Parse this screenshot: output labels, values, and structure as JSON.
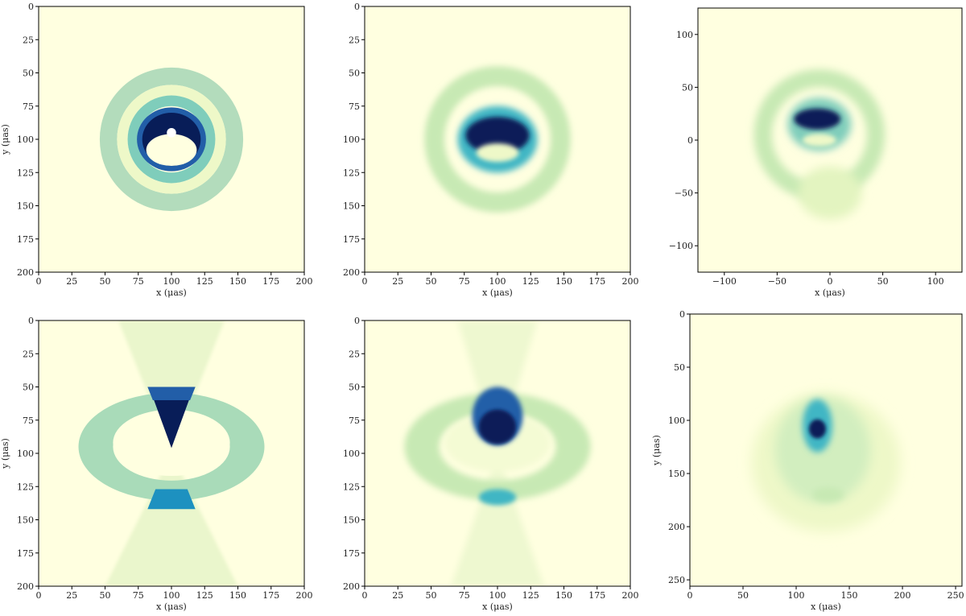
{
  "chart_data": [
    {
      "type": "heatmap",
      "id": "p1",
      "xlabel": "x (μas)",
      "ylabel": "y (μas)",
      "xlim": [
        0,
        200
      ],
      "ylim": [
        200,
        0
      ],
      "xticks": [
        0,
        25,
        50,
        75,
        100,
        125,
        150,
        175,
        200
      ],
      "yticks": [
        0,
        25,
        50,
        75,
        100,
        125,
        150,
        175,
        200
      ],
      "features": [
        {
          "kind": "ring",
          "cx": 100,
          "cy": 100,
          "r_outer": 54,
          "r_inner": 41,
          "color": "#b3dcbc"
        },
        {
          "kind": "ring",
          "cx": 100,
          "cy": 100,
          "r_outer": 41,
          "r_inner": 33,
          "color": "#eef8c8"
        },
        {
          "kind": "ring",
          "cx": 100,
          "cy": 100,
          "r_outer": 33,
          "r_inner": 25,
          "color": "#7fcdbb"
        },
        {
          "kind": "ellipse",
          "cx": 100,
          "cy": 100,
          "rx": 26,
          "ry": 24,
          "color": "#225ea8"
        },
        {
          "kind": "ellipse",
          "cx": 100,
          "cy": 100,
          "rx": 22,
          "ry": 20,
          "color": "#081d58"
        },
        {
          "kind": "ellipse",
          "cx": 100,
          "cy": 108,
          "rx": 19,
          "ry": 12,
          "color": "#ffffe0"
        },
        {
          "kind": "ellipse",
          "cx": 100,
          "cy": 95,
          "rx": 3.5,
          "ry": 3.5,
          "color": "#ffffff"
        }
      ]
    },
    {
      "type": "heatmap",
      "id": "p2",
      "xlabel": "x (μas)",
      "ylabel": "",
      "xlim": [
        0,
        200
      ],
      "ylim": [
        200,
        0
      ],
      "xticks": [
        0,
        25,
        50,
        75,
        100,
        125,
        150,
        175,
        200
      ],
      "yticks": [
        0,
        25,
        50,
        75,
        100,
        125,
        150,
        175,
        200
      ],
      "features": [
        {
          "kind": "ring",
          "cx": 100,
          "cy": 100,
          "r_outer": 55,
          "r_inner": 40,
          "color": "#c7e9b4",
          "blur": 4
        },
        {
          "kind": "ellipse",
          "cx": 100,
          "cy": 100,
          "rx": 30,
          "ry": 25,
          "color": "#41b6c4",
          "blur": 4
        },
        {
          "kind": "ellipse",
          "cx": 100,
          "cy": 97,
          "rx": 24,
          "ry": 14,
          "color": "#081d58",
          "blur": 3
        },
        {
          "kind": "ellipse",
          "cx": 100,
          "cy": 110,
          "rx": 16,
          "ry": 7,
          "color": "#eef8c8",
          "blur": 3
        }
      ]
    },
    {
      "type": "heatmap",
      "id": "p3",
      "xlabel": "x (μas)",
      "ylabel": "",
      "xlim": [
        -125,
        125
      ],
      "ylim": [
        -125,
        125
      ],
      "xticks": [
        -100,
        -50,
        0,
        50,
        100
      ],
      "yticks": [
        -100,
        -50,
        0,
        50,
        100
      ],
      "features": [
        {
          "kind": "ring",
          "cx": -10,
          "cy": 5,
          "r_outer": 62,
          "r_inner": 45,
          "color": "#c7e9b4",
          "blur": 5
        },
        {
          "kind": "ellipse",
          "cx": -10,
          "cy": 15,
          "rx": 30,
          "ry": 25,
          "color": "#7fcdbb",
          "blur": 5
        },
        {
          "kind": "ellipse",
          "cx": -12,
          "cy": 20,
          "rx": 22,
          "ry": 10,
          "color": "#081d58",
          "blur": 3
        },
        {
          "kind": "ellipse",
          "cx": -10,
          "cy": 0,
          "rx": 16,
          "ry": 6,
          "color": "#eef8c8",
          "blur": 3
        },
        {
          "kind": "ellipse",
          "cx": 0,
          "cy": -50,
          "rx": 30,
          "ry": 25,
          "color": "#e3f4c0",
          "blur": 6
        }
      ]
    },
    {
      "type": "heatmap",
      "id": "p4",
      "xlabel": "x (μas)",
      "ylabel": "y (μas)",
      "xlim": [
        0,
        200
      ],
      "ylim": [
        200,
        0
      ],
      "xticks": [
        0,
        25,
        50,
        75,
        100,
        125,
        150,
        175,
        200
      ],
      "yticks": [
        0,
        25,
        50,
        75,
        100,
        125,
        150,
        175,
        200
      ],
      "features": [
        {
          "kind": "polygon",
          "points": [
            [
              60,
              0
            ],
            [
              140,
              0
            ],
            [
              100,
              100
            ]
          ],
          "color": "#eaf6cc",
          "blur": 2
        },
        {
          "kind": "polygon",
          "points": [
            [
              100,
              100
            ],
            [
              150,
              200
            ],
            [
              50,
              200
            ]
          ],
          "color": "#eaf6cc",
          "blur": 2
        },
        {
          "kind": "ring",
          "cx": 100,
          "cy": 95,
          "r_outer": 70,
          "r_inner": 44,
          "scale_y": 0.58,
          "color": "#a9dbb9"
        },
        {
          "kind": "ellipse",
          "cx": 100,
          "cy": 92,
          "rx": 44,
          "ry": 25,
          "color": "#ffffe0"
        },
        {
          "kind": "polygon",
          "points": [
            [
              85,
              55
            ],
            [
              115,
              55
            ],
            [
              100,
              96
            ]
          ],
          "color": "#081d58"
        },
        {
          "kind": "polygon",
          "points": [
            [
              82,
              50
            ],
            [
              118,
              50
            ],
            [
              114,
              60
            ],
            [
              86,
              60
            ]
          ],
          "color": "#225ea8"
        },
        {
          "kind": "polygon",
          "points": [
            [
              88,
              127
            ],
            [
              112,
              127
            ],
            [
              118,
              142
            ],
            [
              82,
              142
            ]
          ],
          "color": "#1d91c0"
        }
      ]
    },
    {
      "type": "heatmap",
      "id": "p5",
      "xlabel": "x (μas)",
      "ylabel": "",
      "xlim": [
        0,
        200
      ],
      "ylim": [
        200,
        0
      ],
      "xticks": [
        0,
        25,
        50,
        75,
        100,
        125,
        150,
        175,
        200
      ],
      "yticks": [
        0,
        25,
        50,
        75,
        100,
        125,
        150,
        175,
        200
      ],
      "features": [
        {
          "kind": "polygon",
          "points": [
            [
              70,
              0
            ],
            [
              130,
              0
            ],
            [
              100,
              100
            ]
          ],
          "color": "#eef8d0",
          "blur": 4
        },
        {
          "kind": "polygon",
          "points": [
            [
              100,
              100
            ],
            [
              135,
              200
            ],
            [
              65,
              200
            ]
          ],
          "color": "#eef8d0",
          "blur": 4
        },
        {
          "kind": "ring",
          "cx": 100,
          "cy": 95,
          "r_outer": 70,
          "r_inner": 44,
          "scale_y": 0.58,
          "color": "#c7e9b4",
          "blur": 4
        },
        {
          "kind": "ellipse",
          "cx": 100,
          "cy": 92,
          "rx": 40,
          "ry": 22,
          "color": "#f4fbd4",
          "blur": 4
        },
        {
          "kind": "ellipse",
          "cx": 100,
          "cy": 72,
          "rx": 19,
          "ry": 22,
          "color": "#225ea8",
          "blur": 3
        },
        {
          "kind": "ellipse",
          "cx": 100,
          "cy": 80,
          "rx": 14,
          "ry": 13,
          "color": "#081d58",
          "blur": 2
        },
        {
          "kind": "ellipse",
          "cx": 100,
          "cy": 133,
          "rx": 14,
          "ry": 6,
          "color": "#41b6c4",
          "blur": 3
        }
      ]
    },
    {
      "type": "heatmap",
      "id": "p6",
      "xlabel": "x (μas)",
      "ylabel": "y (μas)",
      "xlim": [
        0,
        256
      ],
      "ylim": [
        256,
        0
      ],
      "xticks": [
        0,
        50,
        100,
        150,
        200,
        250
      ],
      "yticks": [
        0,
        50,
        100,
        150,
        200,
        250
      ],
      "features": [
        {
          "kind": "ellipse",
          "cx": 128,
          "cy": 140,
          "rx": 70,
          "ry": 65,
          "color": "#eef8c8",
          "blur": 8
        },
        {
          "kind": "ellipse",
          "cx": 125,
          "cy": 128,
          "rx": 45,
          "ry": 50,
          "color": "#d2eebf",
          "blur": 7
        },
        {
          "kind": "ellipse",
          "cx": 120,
          "cy": 105,
          "rx": 14,
          "ry": 25,
          "color": "#41b6c4",
          "blur": 4
        },
        {
          "kind": "ellipse",
          "cx": 120,
          "cy": 108,
          "rx": 8,
          "ry": 9,
          "color": "#081d58",
          "blur": 2
        },
        {
          "kind": "ellipse",
          "cx": 130,
          "cy": 170,
          "rx": 15,
          "ry": 7,
          "color": "#c7e9b4",
          "blur": 4
        }
      ]
    }
  ]
}
